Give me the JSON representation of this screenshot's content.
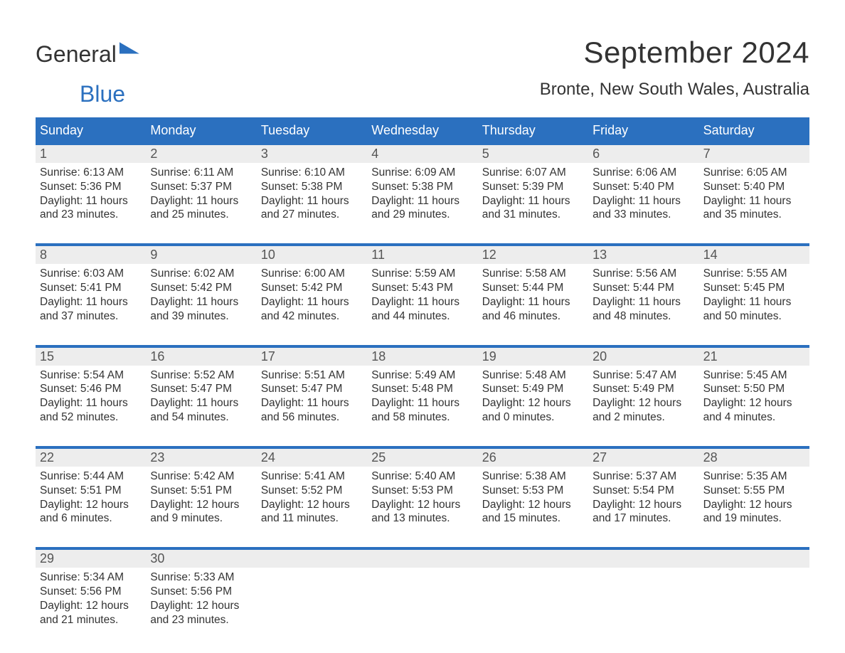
{
  "brand": {
    "part1": "General",
    "part2": "Blue"
  },
  "title": "September 2024",
  "location": "Bronte, New South Wales, Australia",
  "colors": {
    "header_bg": "#2b70bf",
    "header_text": "#ffffff",
    "daynum_bg": "#ededed",
    "body_bg": "#ffffff",
    "text": "#333333",
    "accent_line": "#2b70bf"
  },
  "day_labels": [
    "Sunday",
    "Monday",
    "Tuesday",
    "Wednesday",
    "Thursday",
    "Friday",
    "Saturday"
  ],
  "weeks": [
    [
      {
        "n": "1",
        "sunrise": "6:13 AM",
        "sunset": "5:36 PM",
        "daylight": "11 hours and 23 minutes."
      },
      {
        "n": "2",
        "sunrise": "6:11 AM",
        "sunset": "5:37 PM",
        "daylight": "11 hours and 25 minutes."
      },
      {
        "n": "3",
        "sunrise": "6:10 AM",
        "sunset": "5:38 PM",
        "daylight": "11 hours and 27 minutes."
      },
      {
        "n": "4",
        "sunrise": "6:09 AM",
        "sunset": "5:38 PM",
        "daylight": "11 hours and 29 minutes."
      },
      {
        "n": "5",
        "sunrise": "6:07 AM",
        "sunset": "5:39 PM",
        "daylight": "11 hours and 31 minutes."
      },
      {
        "n": "6",
        "sunrise": "6:06 AM",
        "sunset": "5:40 PM",
        "daylight": "11 hours and 33 minutes."
      },
      {
        "n": "7",
        "sunrise": "6:05 AM",
        "sunset": "5:40 PM",
        "daylight": "11 hours and 35 minutes."
      }
    ],
    [
      {
        "n": "8",
        "sunrise": "6:03 AM",
        "sunset": "5:41 PM",
        "daylight": "11 hours and 37 minutes."
      },
      {
        "n": "9",
        "sunrise": "6:02 AM",
        "sunset": "5:42 PM",
        "daylight": "11 hours and 39 minutes."
      },
      {
        "n": "10",
        "sunrise": "6:00 AM",
        "sunset": "5:42 PM",
        "daylight": "11 hours and 42 minutes."
      },
      {
        "n": "11",
        "sunrise": "5:59 AM",
        "sunset": "5:43 PM",
        "daylight": "11 hours and 44 minutes."
      },
      {
        "n": "12",
        "sunrise": "5:58 AM",
        "sunset": "5:44 PM",
        "daylight": "11 hours and 46 minutes."
      },
      {
        "n": "13",
        "sunrise": "5:56 AM",
        "sunset": "5:44 PM",
        "daylight": "11 hours and 48 minutes."
      },
      {
        "n": "14",
        "sunrise": "5:55 AM",
        "sunset": "5:45 PM",
        "daylight": "11 hours and 50 minutes."
      }
    ],
    [
      {
        "n": "15",
        "sunrise": "5:54 AM",
        "sunset": "5:46 PM",
        "daylight": "11 hours and 52 minutes."
      },
      {
        "n": "16",
        "sunrise": "5:52 AM",
        "sunset": "5:47 PM",
        "daylight": "11 hours and 54 minutes."
      },
      {
        "n": "17",
        "sunrise": "5:51 AM",
        "sunset": "5:47 PM",
        "daylight": "11 hours and 56 minutes."
      },
      {
        "n": "18",
        "sunrise": "5:49 AM",
        "sunset": "5:48 PM",
        "daylight": "11 hours and 58 minutes."
      },
      {
        "n": "19",
        "sunrise": "5:48 AM",
        "sunset": "5:49 PM",
        "daylight": "12 hours and 0 minutes."
      },
      {
        "n": "20",
        "sunrise": "5:47 AM",
        "sunset": "5:49 PM",
        "daylight": "12 hours and 2 minutes."
      },
      {
        "n": "21",
        "sunrise": "5:45 AM",
        "sunset": "5:50 PM",
        "daylight": "12 hours and 4 minutes."
      }
    ],
    [
      {
        "n": "22",
        "sunrise": "5:44 AM",
        "sunset": "5:51 PM",
        "daylight": "12 hours and 6 minutes."
      },
      {
        "n": "23",
        "sunrise": "5:42 AM",
        "sunset": "5:51 PM",
        "daylight": "12 hours and 9 minutes."
      },
      {
        "n": "24",
        "sunrise": "5:41 AM",
        "sunset": "5:52 PM",
        "daylight": "12 hours and 11 minutes."
      },
      {
        "n": "25",
        "sunrise": "5:40 AM",
        "sunset": "5:53 PM",
        "daylight": "12 hours and 13 minutes."
      },
      {
        "n": "26",
        "sunrise": "5:38 AM",
        "sunset": "5:53 PM",
        "daylight": "12 hours and 15 minutes."
      },
      {
        "n": "27",
        "sunrise": "5:37 AM",
        "sunset": "5:54 PM",
        "daylight": "12 hours and 17 minutes."
      },
      {
        "n": "28",
        "sunrise": "5:35 AM",
        "sunset": "5:55 PM",
        "daylight": "12 hours and 19 minutes."
      }
    ],
    [
      {
        "n": "29",
        "sunrise": "5:34 AM",
        "sunset": "5:56 PM",
        "daylight": "12 hours and 21 minutes."
      },
      {
        "n": "30",
        "sunrise": "5:33 AM",
        "sunset": "5:56 PM",
        "daylight": "12 hours and 23 minutes."
      },
      null,
      null,
      null,
      null,
      null
    ]
  ],
  "labels": {
    "sunrise": "Sunrise: ",
    "sunset": "Sunset: ",
    "daylight": "Daylight: "
  }
}
